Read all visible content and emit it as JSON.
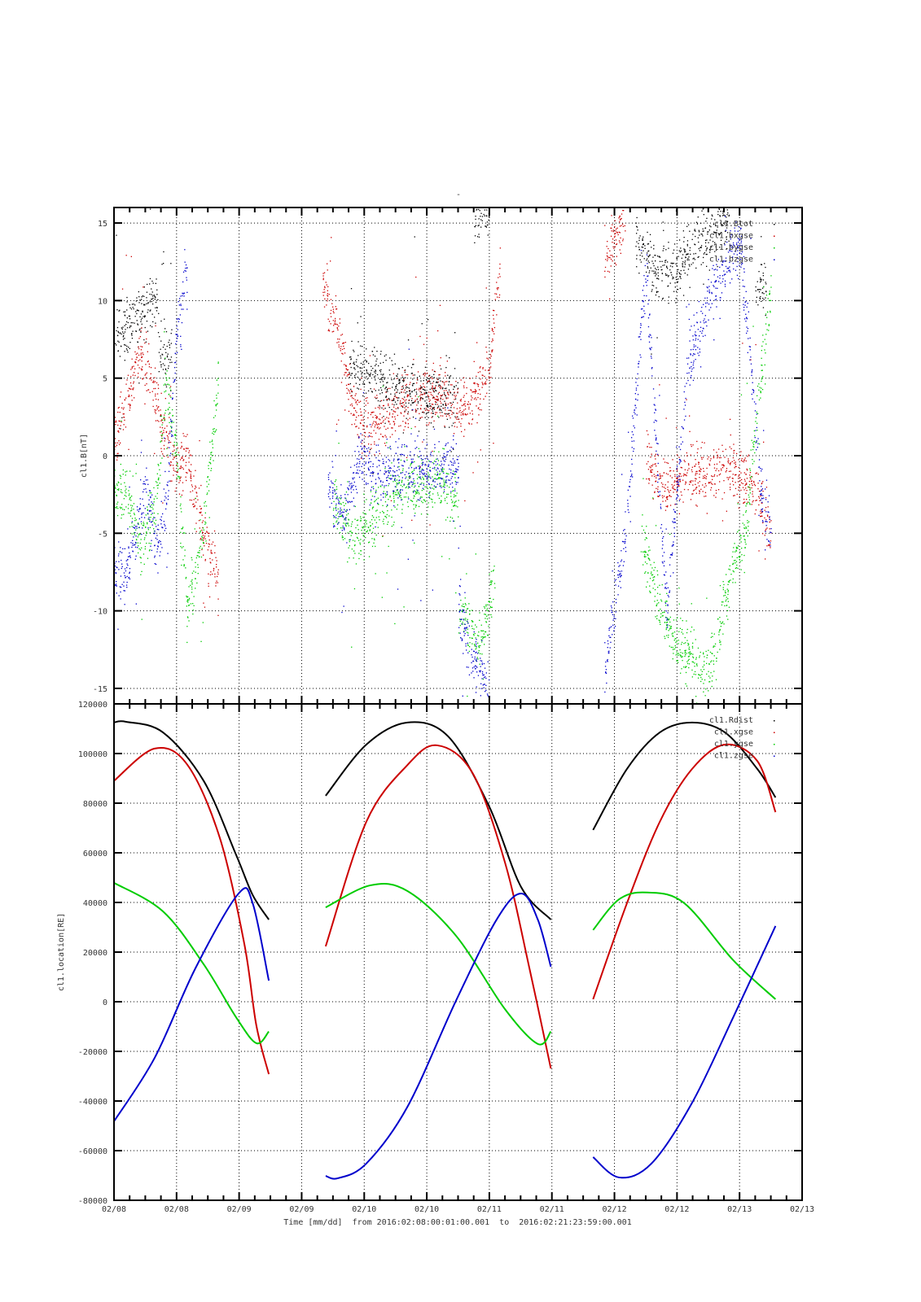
{
  "title": "-",
  "xaxis": {
    "label": "Time [mm/dd]  from 2016:02:08:00:01:00.001  to  2016:02:21:23:59:00.001",
    "unit": "hours since 2016-02-08 00:00",
    "range": [
      0,
      132
    ],
    "major_step": 12,
    "tick_labels": [
      "02/08",
      "02/08",
      "02/09",
      "02/09",
      "02/10",
      "02/10",
      "02/11",
      "02/11",
      "02/12",
      "02/12",
      "02/13",
      "02/13"
    ]
  },
  "chart_data": [
    {
      "type": "scatter",
      "title": "-",
      "ylabel": "cl1.B[nT]",
      "ylim": [
        -16,
        16
      ],
      "yticks": [
        -15,
        -10,
        -5,
        0,
        5,
        10,
        15
      ],
      "grid": true,
      "legend": "top-right",
      "noise": 0.9,
      "series": [
        {
          "name": "cl1.Btot",
          "color": "#000000",
          "segments": [
            [
              [
                0,
                7.5
              ],
              [
                3,
                8.5
              ],
              [
                6,
                9.5
              ],
              [
                8,
                10.5
              ],
              [
                9,
                6
              ],
              [
                11,
                7
              ]
            ],
            [
              [
                45,
                6
              ],
              [
                48,
                5.5
              ],
              [
                52,
                4.5
              ],
              [
                56,
                4.2
              ],
              [
                60,
                4
              ],
              [
                66,
                3.8
              ]
            ],
            [
              [
                69,
                15.5
              ],
              [
                72,
                15.8
              ]
            ],
            [
              [
                100,
                14
              ],
              [
                104,
                12
              ],
              [
                108,
                12
              ],
              [
                112,
                14
              ],
              [
                118,
                15.5
              ]
            ],
            [
              [
                123,
                10
              ],
              [
                125,
                11.5
              ]
            ]
          ]
        },
        {
          "name": "cl1.bxgse",
          "color": "#cc0000",
          "segments": [
            [
              [
                0,
                1
              ],
              [
                3,
                4
              ],
              [
                5,
                7
              ],
              [
                7,
                5
              ],
              [
                9,
                2
              ],
              [
                12,
                -1
              ],
              [
                14,
                0
              ],
              [
                17,
                -5
              ],
              [
                20,
                -8
              ]
            ],
            [
              [
                40,
                11
              ],
              [
                43,
                8
              ],
              [
                46,
                3
              ],
              [
                48,
                2
              ],
              [
                52,
                2.5
              ],
              [
                56,
                3.5
              ],
              [
                62,
                4
              ],
              [
                68,
                3
              ],
              [
                72,
                6
              ],
              [
                74,
                12
              ]
            ],
            [
              [
                94,
                13
              ],
              [
                98,
                15
              ]
            ],
            [
              [
                102,
                0
              ],
              [
                106,
                -2
              ],
              [
                110,
                -1
              ],
              [
                116,
                -1
              ],
              [
                120,
                -1
              ],
              [
                124,
                -3
              ],
              [
                126,
                -5
              ]
            ]
          ]
        },
        {
          "name": "cl1.bygse",
          "color": "#00cc00",
          "segments": [
            [
              [
                0,
                -2
              ],
              [
                3,
                -3
              ],
              [
                5,
                -6
              ],
              [
                8,
                -3
              ],
              [
                10,
                5
              ],
              [
                12,
                0
              ],
              [
                14,
                -10
              ],
              [
                17,
                -5
              ],
              [
                20,
                5
              ]
            ],
            [
              [
                42,
                -3
              ],
              [
                46,
                -5
              ],
              [
                50,
                -4
              ],
              [
                55,
                -2
              ],
              [
                58,
                -2
              ],
              [
                62,
                -1.5
              ],
              [
                66,
                -3
              ]
            ],
            [
              [
                66,
                -10
              ],
              [
                70,
                -12
              ],
              [
                73,
                -8
              ]
            ],
            [
              [
                101,
                -5
              ],
              [
                104,
                -9
              ],
              [
                108,
                -12
              ],
              [
                114,
                -14
              ],
              [
                118,
                -8
              ],
              [
                121,
                -5
              ],
              [
                124,
                5
              ],
              [
                126,
                11
              ]
            ]
          ]
        },
        {
          "name": "cl1.bzgse",
          "color": "#0000cc",
          "segments": [
            [
              [
                0,
                -7
              ],
              [
                2,
                -8
              ],
              [
                4,
                -5
              ],
              [
                6,
                -2
              ],
              [
                8,
                -6
              ],
              [
                10,
                -3
              ],
              [
                12,
                8
              ],
              [
                14,
                12
              ]
            ],
            [
              [
                41,
                -2
              ],
              [
                44,
                -4
              ],
              [
                47,
                0
              ],
              [
                50,
                -1
              ],
              [
                55,
                -1
              ],
              [
                60,
                -1
              ],
              [
                66,
                -0.5
              ]
            ],
            [
              [
                66,
                -10
              ],
              [
                70,
                -14
              ],
              [
                72,
                -15
              ]
            ],
            [
              [
                94,
                -14
              ],
              [
                98,
                -5
              ],
              [
                102,
                12
              ],
              [
                106,
                -10
              ],
              [
                110,
                6
              ],
              [
                114,
                10
              ],
              [
                120,
                14
              ],
              [
                124,
                -2
              ],
              [
                126,
                -5
              ]
            ]
          ]
        }
      ]
    },
    {
      "type": "line",
      "ylabel": "cl1.location[RE]",
      "ylim": [
        -80000,
        120000
      ],
      "yticks": [
        -80000,
        -60000,
        -40000,
        -20000,
        0,
        20000,
        40000,
        60000,
        80000,
        100000,
        120000
      ],
      "grid": true,
      "legend": "top-right",
      "series": [
        {
          "name": "cl1.Rdist",
          "color": "#000000",
          "segments": [
            [
              [
                0,
                112500
              ],
              [
                2.3,
                112800
              ],
              [
                9.4,
                108500
              ],
              [
                17.2,
                89000
              ],
              [
                23.4,
                59300
              ],
              [
                26.6,
                43000
              ],
              [
                29.7,
                33100
              ]
            ],
            [
              [
                40.6,
                83000
              ],
              [
                48.4,
                103600
              ],
              [
                56.3,
                112500
              ],
              [
                64.1,
                106900
              ],
              [
                71.9,
                79000
              ],
              [
                78.1,
                46200
              ],
              [
                83.8,
                33100
              ]
            ],
            [
              [
                91.9,
                69200
              ],
              [
                98.4,
                93800
              ],
              [
                104.7,
                108500
              ],
              [
                110.9,
                112500
              ],
              [
                117.2,
                108500
              ],
              [
                123.4,
                93800
              ],
              [
                126.9,
                82300
              ]
            ]
          ]
        },
        {
          "name": "cl1.xgse",
          "color": "#cc0000",
          "segments": [
            [
              [
                0,
                89000
              ],
              [
                7.8,
                102000
              ],
              [
                14.1,
                95400
              ],
              [
                20.3,
                66000
              ],
              [
                25,
                23300
              ],
              [
                27.3,
                -9500
              ],
              [
                29.7,
                -29200
              ]
            ],
            [
              [
                40.6,
                22300
              ],
              [
                48.4,
                72500
              ],
              [
                56.3,
                95400
              ],
              [
                62,
                103300
              ],
              [
                68.8,
                92100
              ],
              [
                75,
                56100
              ],
              [
                79.7,
                13400
              ],
              [
                83.8,
                -26900
              ]
            ],
            [
              [
                91.9,
                1000
              ],
              [
                98.4,
                39700
              ],
              [
                104.7,
                72500
              ],
              [
                110.9,
                93800
              ],
              [
                117.2,
                103600
              ],
              [
                123.4,
                97000
              ],
              [
                126.9,
                76400
              ]
            ]
          ]
        },
        {
          "name": "cl1.ygse",
          "color": "#00cc00",
          "segments": [
            [
              [
                0,
                47900
              ],
              [
                9.4,
                36400
              ],
              [
                17.2,
                15100
              ],
              [
                23.4,
                -6200
              ],
              [
                27.3,
                -16700
              ],
              [
                29.7,
                -12000
              ]
            ],
            [
              [
                40.6,
                38000
              ],
              [
                49.2,
                46900
              ],
              [
                56.3,
                44600
              ],
              [
                65.6,
                26600
              ],
              [
                75,
                -3000
              ],
              [
                81.3,
                -17000
              ],
              [
                83.8,
                -12000
              ]
            ],
            [
              [
                91.9,
                28900
              ],
              [
                96.9,
                41300
              ],
              [
                102.3,
                44000
              ],
              [
                109.4,
                39700
              ],
              [
                118.8,
                16700
              ],
              [
                126.9,
                1000
              ]
            ]
          ]
        },
        {
          "name": "cl1.zgse",
          "color": "#0000cc",
          "segments": [
            [
              [
                0,
                -48200
              ],
              [
                7.8,
                -22600
              ],
              [
                15.6,
                13400
              ],
              [
                23.9,
                43600
              ],
              [
                26.6,
                39700
              ],
              [
                29.7,
                8500
              ]
            ],
            [
              [
                40.6,
                -70200
              ],
              [
                43,
                -71100
              ],
              [
                48.4,
                -65200
              ],
              [
                56.3,
                -42300
              ],
              [
                65.6,
                380
              ],
              [
                73.4,
                33100
              ],
              [
                78.1,
                43600
              ],
              [
                81.3,
                33100
              ],
              [
                83.8,
                14100
              ]
            ],
            [
              [
                91.9,
                -62600
              ],
              [
                96.9,
                -70800
              ],
              [
                103.1,
                -65200
              ],
              [
                110.9,
                -40700
              ],
              [
                118.8,
                -6200
              ],
              [
                126.9,
                30500
              ]
            ]
          ]
        }
      ]
    }
  ]
}
